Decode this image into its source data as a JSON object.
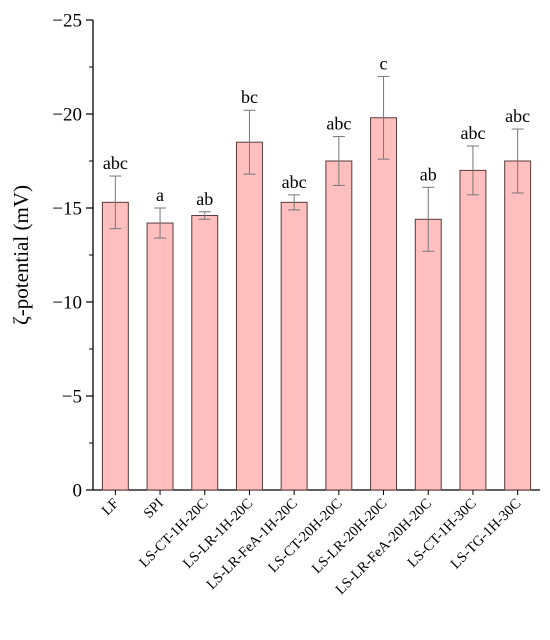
{
  "chart_data": {
    "type": "bar",
    "title": "",
    "xlabel": "",
    "ylabel": "ζ-potential (mV)",
    "ylim": [
      0,
      -25
    ],
    "y_axis_inverted": true,
    "yticks": [
      0,
      -5,
      -10,
      -15,
      -20,
      -25
    ],
    "ytick_labels": [
      "0",
      "−5",
      "−10",
      "−15",
      "−20",
      "−25"
    ],
    "bar_color": "#ffbfbf",
    "bar_edge_color": "#5a3a3a",
    "error_bar_color": "#777777",
    "categories": [
      "LF",
      "SPI",
      "LS-CT-1H-20C",
      "LS-LR-1H-20C",
      "LS-LR-FeA-1H-20C",
      "LS-CT-20H-20C",
      "LS-LR-20H-20C",
      "LS-LR-FeA-20H-20C",
      "LS-CT-1H-30C",
      "LS-TG-1H-30C"
    ],
    "values": [
      -15.3,
      -14.2,
      -14.6,
      -18.5,
      -15.3,
      -17.5,
      -19.8,
      -14.4,
      -17.0,
      -17.5
    ],
    "errors": [
      1.4,
      0.8,
      0.2,
      1.7,
      0.4,
      1.3,
      2.2,
      1.7,
      1.3,
      1.7
    ],
    "significance": [
      "abc",
      "a",
      "ab",
      "bc",
      "abc",
      "abc",
      "c",
      "ab",
      "abc",
      "abc"
    ],
    "grid": false,
    "legend": "none"
  }
}
